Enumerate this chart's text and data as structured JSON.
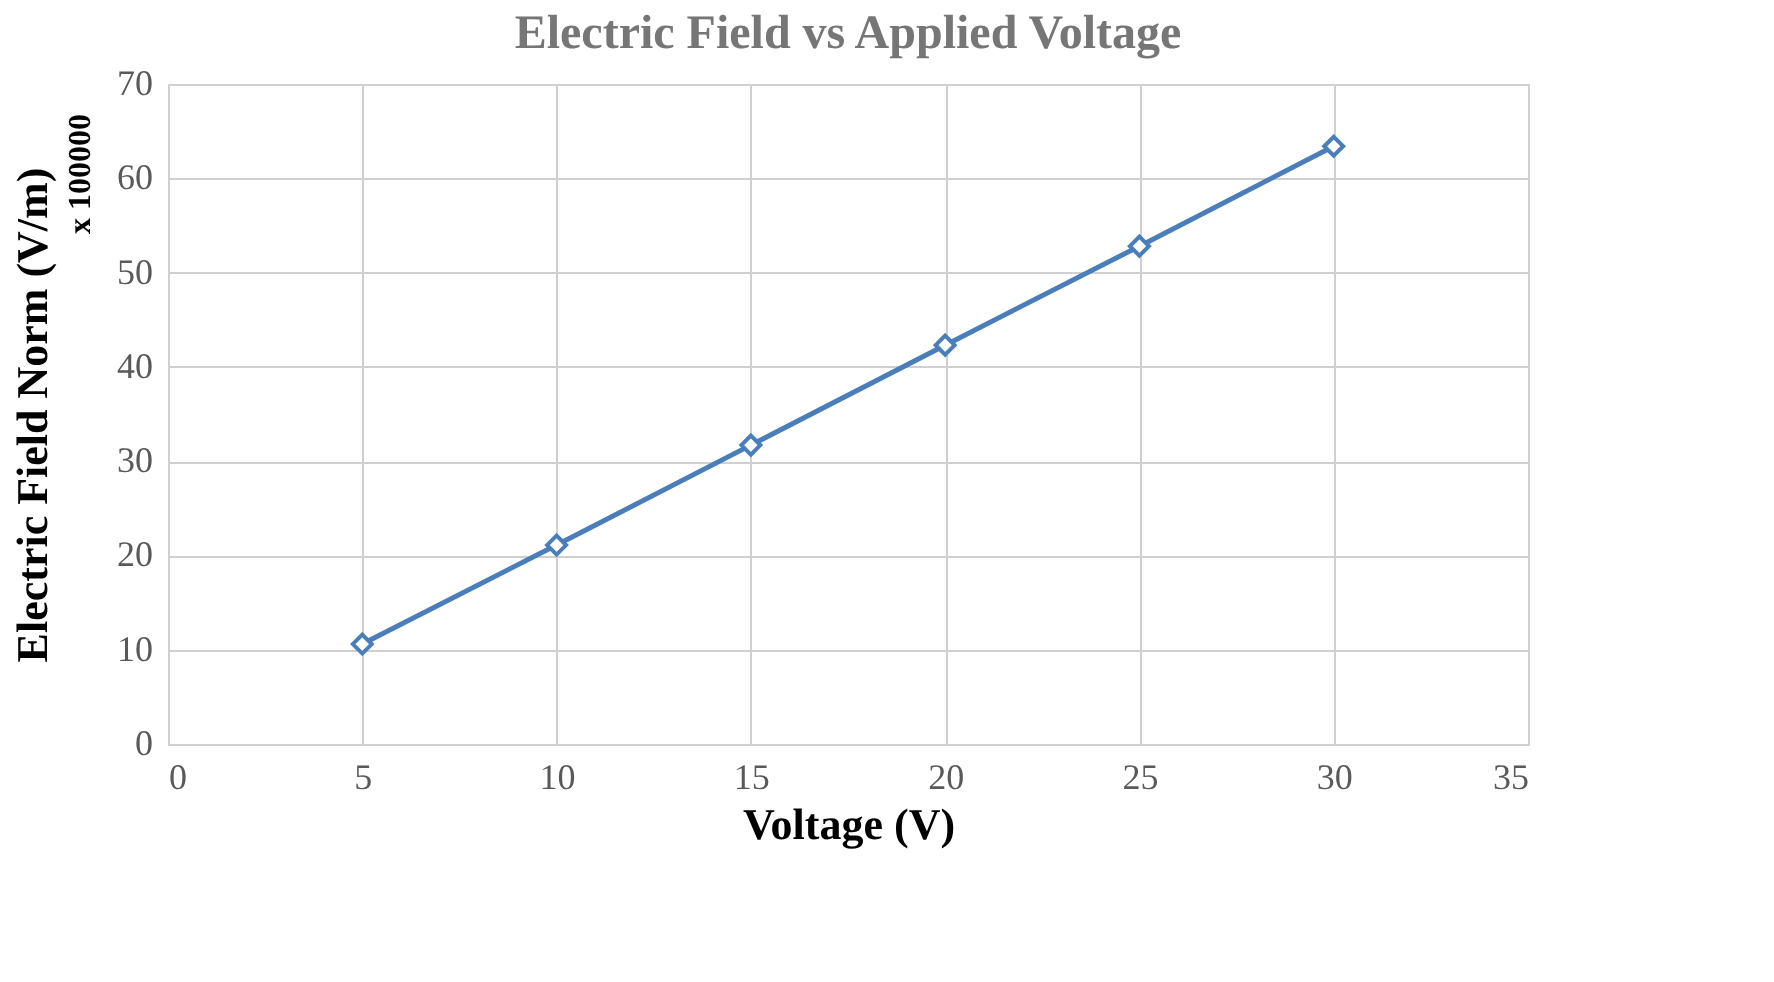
{
  "chart_data": {
    "type": "line",
    "title": "Electric Field vs Applied Voltage",
    "xlabel": "Voltage (V)",
    "ylabel": "Electric Field Norm (V/m)",
    "annotations": [
      "x 100000"
    ],
    "x": [
      5,
      10,
      15,
      20,
      25,
      30
    ],
    "series": [
      {
        "color": "#4a7ebb",
        "values": [
          10.6,
          21.1,
          31.7,
          42.3,
          52.8,
          63.4
        ]
      }
    ],
    "xlim": [
      0,
      35
    ],
    "xticks": [
      0,
      5,
      10,
      15,
      20,
      25,
      30,
      35
    ],
    "ylim": [
      0,
      70
    ],
    "yticks": [
      0,
      10,
      20,
      30,
      40,
      50,
      60,
      70
    ],
    "grid": true,
    "marker": "diamond",
    "line_style": "solid"
  }
}
